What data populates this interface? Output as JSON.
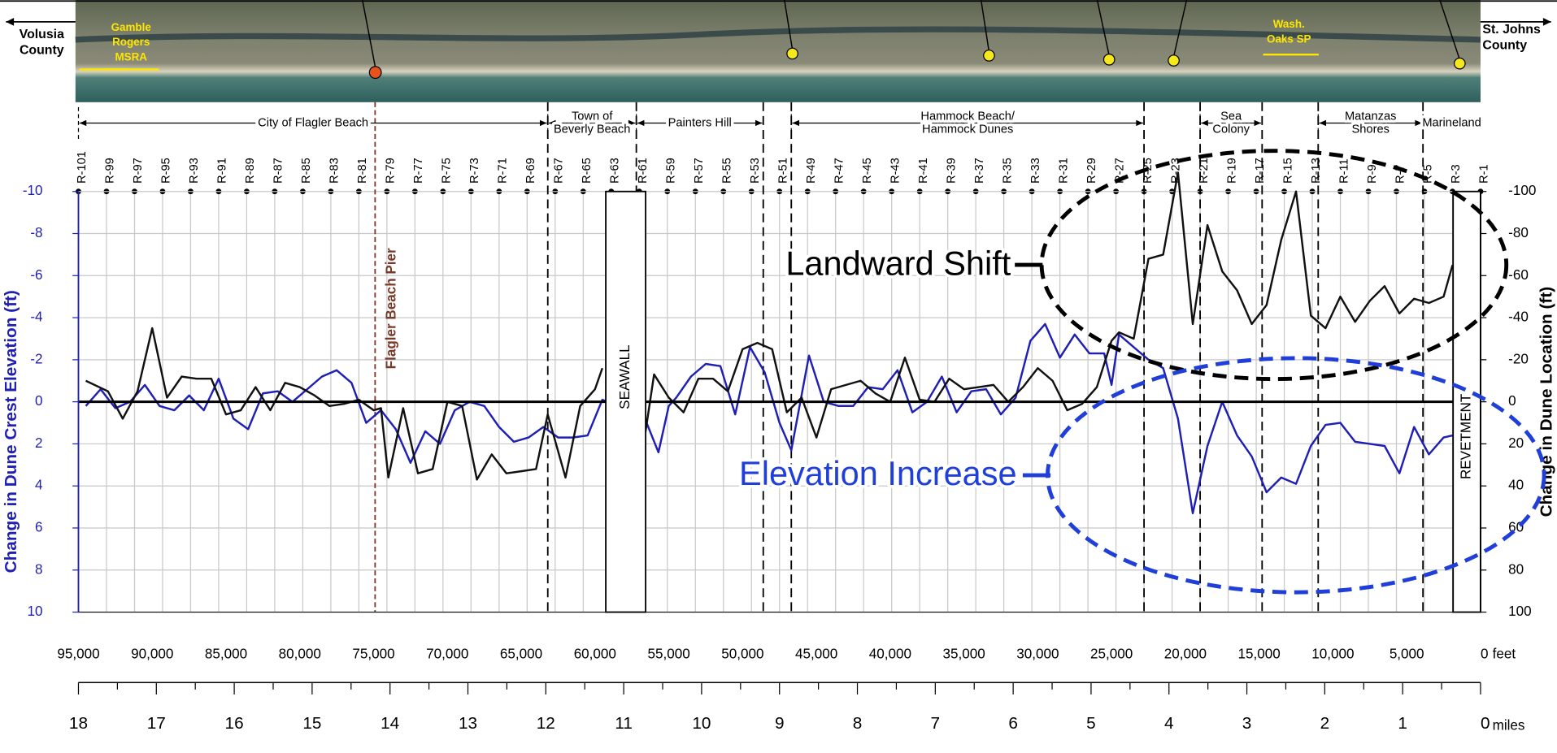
{
  "chart_data": {
    "type": "line",
    "xlim": [
      95000,
      0
    ],
    "xticks": [
      {
        "value": 95000,
        "label": "95,000"
      },
      {
        "value": 90000,
        "label": "90,000"
      },
      {
        "value": 85000,
        "label": "85,000"
      },
      {
        "value": 80000,
        "label": "80,000"
      },
      {
        "value": 75000,
        "label": "75,000"
      },
      {
        "value": 70000,
        "label": "70,000"
      },
      {
        "value": 65000,
        "label": "65,000"
      },
      {
        "value": 60000,
        "label": "60,000"
      },
      {
        "value": 55000,
        "label": "55,000"
      },
      {
        "value": 50000,
        "label": "50,000"
      },
      {
        "value": 45000,
        "label": "45,000"
      },
      {
        "value": 40000,
        "label": "40,000"
      },
      {
        "value": 35000,
        "label": "35,000"
      },
      {
        "value": 30000,
        "label": "30,000"
      },
      {
        "value": 25000,
        "label": "25,000"
      },
      {
        "value": 20000,
        "label": "20,000"
      },
      {
        "value": 15000,
        "label": "15,000"
      },
      {
        "value": 10000,
        "label": "10,000"
      },
      {
        "value": 5000,
        "label": "5,000"
      },
      0
    ],
    "x_unit": "feet",
    "x2lim": [
      18,
      0
    ],
    "x2ticks": [
      18,
      17,
      16,
      15,
      14,
      13,
      12,
      11,
      10,
      9,
      8,
      7,
      6,
      5,
      4,
      3,
      2,
      1,
      0
    ],
    "x2_unit": "miles",
    "ylabel": "Change in Dune Crest Elevation (ft)",
    "ylim": [
      -10,
      10
    ],
    "yticks": [
      -10,
      -8,
      -6,
      -4,
      -2,
      0,
      2,
      4,
      6,
      8,
      10
    ],
    "y_inverted": true,
    "y2label": "Change in Dune Location (ft)",
    "y2lim": [
      -100,
      100
    ],
    "y2ticks": [
      -100,
      -80,
      -60,
      -40,
      -20,
      0,
      20,
      40,
      60,
      80,
      100
    ],
    "grid": true,
    "series": [
      {
        "color": "#1f1fb4",
        "x": [
          94500,
          93500,
          92500,
          91500,
          90500,
          89500,
          88500,
          87500,
          86500,
          85500,
          84500,
          83500,
          82500,
          81500,
          80500,
          79500,
          78500,
          77500,
          76500,
          75500,
          74500,
          73500,
          72500,
          71500,
          70500,
          69500,
          68500,
          67500,
          66500,
          65500,
          64500,
          63500,
          62500,
          61500,
          60500,
          59500,
          58500,
          57800,
          57000,
          56500,
          55700,
          55000,
          54500,
          53500,
          52500,
          51500,
          50500,
          49500,
          48500,
          47500,
          46700,
          45500,
          44500,
          43500,
          42500,
          41500,
          40500,
          39500,
          38500,
          37500,
          36500,
          35500,
          34500,
          33500,
          32500,
          31500,
          30500,
          29500,
          28500,
          27500,
          26500,
          25500,
          25000,
          24500,
          23500,
          22500,
          21500,
          20500,
          19500,
          18500,
          17500,
          16500,
          15500,
          14500,
          13500,
          12500,
          11500,
          10500,
          9500,
          8500,
          7500,
          6500,
          5500,
          4500,
          3500,
          2500,
          1900
        ],
        "values": [
          0.2,
          -0.6,
          0.3,
          0,
          -0.8,
          0.2,
          0.4,
          -0.3,
          0.4,
          -1.1,
          0.8,
          1.3,
          -0.4,
          -0.5,
          0,
          -0.6,
          -1.2,
          -1.5,
          -0.9,
          1,
          0.4,
          1.3,
          2.9,
          1.4,
          2.0,
          0.4,
          0,
          0.2,
          1.2,
          1.9,
          1.7,
          1.2,
          1.7,
          1.7,
          1.6,
          -0.1,
          0.2,
          0.9,
          null,
          1.0,
          2.4,
          0.2,
          -0.2,
          -1.2,
          -1.8,
          -1.7,
          0.6,
          -2.6,
          -1.4,
          1.0,
          2.3,
          -2.2,
          0,
          0.2,
          0.2,
          -0.7,
          -0.6,
          -1.5,
          0.5,
          0,
          -1.2,
          0.5,
          -0.5,
          -0.6,
          0.6,
          -0.2,
          -2.9,
          -3.7,
          -2.1,
          -3.2,
          -2.3,
          -2.3,
          -0.8,
          -3.2,
          -2.6,
          -2.0,
          -1.6,
          0.8,
          5.3,
          2.1,
          0,
          1.6,
          2.6,
          4.3,
          3.6,
          3.9,
          2.1,
          1.1,
          1.0,
          1.9,
          2.0,
          2.1,
          3.4,
          1.2,
          2.5,
          1.7,
          1.6
        ]
      },
      {
        "color": "#111111",
        "axis": "y2",
        "x": [
          94500,
          93000,
          92000,
          91000,
          90000,
          89000,
          88000,
          87000,
          86000,
          85000,
          84000,
          83000,
          82000,
          81000,
          80000,
          79000,
          78000,
          77000,
          76000,
          75000,
          74500,
          74000,
          73000,
          72000,
          71000,
          70000,
          69000,
          68000,
          67000,
          66000,
          65000,
          64000,
          63200,
          62000,
          61000,
          60000,
          59500,
          58500,
          57000,
          56000,
          55000,
          54000,
          53000,
          52000,
          51000,
          50000,
          49000,
          48000,
          47000,
          46000,
          45000,
          44000,
          43000,
          42000,
          41000,
          40000,
          39000,
          38000,
          37000,
          36000,
          35000,
          34000,
          33000,
          32000,
          31000,
          30000,
          29000,
          28000,
          27000,
          26000,
          25000,
          24500,
          23500,
          22500,
          21500,
          20500,
          19500,
          18500,
          17500,
          16500,
          15500,
          14500,
          13500,
          12500,
          11500,
          10500,
          9500,
          8500,
          7500,
          6500,
          5500,
          4500,
          3500,
          2500,
          1900
        ],
        "values": [
          -10,
          -5,
          8,
          -5,
          -35,
          -2,
          -12,
          -11,
          -11,
          6,
          4,
          -7,
          4,
          -9,
          -7,
          -3,
          2,
          1,
          -1,
          4,
          3,
          36,
          3,
          34,
          32,
          0,
          2,
          37,
          25,
          34,
          33,
          32,
          6,
          36,
          2,
          -6,
          -16,
          null,
          34,
          -13,
          -2,
          5,
          -11,
          -11,
          -5,
          -25,
          -28,
          -25,
          5,
          -2,
          17,
          -6,
          -8,
          -10,
          -4,
          0,
          -21,
          -1,
          0,
          -11,
          -6,
          -7,
          -8,
          0,
          -7,
          -16,
          -10,
          4,
          1,
          -7,
          -29,
          -33,
          -30,
          -68,
          -70,
          -109,
          -37,
          -84,
          -62,
          -53,
          -37,
          -46,
          -77,
          -100,
          -41,
          -35,
          -50,
          -38,
          -48,
          -55,
          -42,
          -49,
          -47,
          -50,
          -65
        ]
      }
    ],
    "monuments": [
      "R-101",
      "R-99",
      "R-97",
      "R-95",
      "R-93",
      "R-91",
      "R-89",
      "R-87",
      "R-85",
      "R-83",
      "R-81",
      "R-79",
      "R-77",
      "R-75",
      "R-73",
      "R-71",
      "R-69",
      "R-67",
      "R-65",
      "R-63",
      "R-61",
      "R-59",
      "R-57",
      "R-55",
      "R-53",
      "R-51",
      "R-49",
      "R-47",
      "R-45",
      "R-43",
      "R-41",
      "R-39",
      "R-37",
      "R-35",
      "R-33",
      "R-31",
      "R-29",
      "R-27",
      "R-25",
      "R-23",
      "R-21",
      "R-19",
      "R-17",
      "R-15",
      "R-13",
      "R-11",
      "R-9",
      "R-7",
      "R-5",
      "R-3",
      "R-1"
    ],
    "monument_x": [
      95000,
      93100,
      91200,
      89300,
      87400,
      85500,
      83600,
      81700,
      79800,
      77900,
      76000,
      74100,
      72200,
      70300,
      68400,
      66500,
      64600,
      62700,
      60800,
      58900,
      57000,
      55100,
      53200,
      51300,
      49400,
      47500,
      45600,
      43700,
      41800,
      39900,
      38000,
      36100,
      34200,
      32300,
      30400,
      28500,
      26600,
      24700,
      22800,
      20900,
      19000,
      17100,
      15200,
      13300,
      11400,
      9500,
      7600,
      5700,
      3800,
      1900,
      0
    ],
    "boundaries": [
      63200,
      57200,
      48600,
      46700,
      22800,
      19000,
      14800,
      11000,
      3900
    ],
    "regions": [
      {
        "lines": [
          "City of Flagler Beach"
        ],
        "start": 95000,
        "end": 63200
      },
      {
        "lines": [
          "Town of",
          "Beverly Beach"
        ],
        "start": 63200,
        "end": 57200
      },
      {
        "lines": [
          "Painters Hill"
        ],
        "start": 57200,
        "end": 48600
      },
      {
        "lines": [
          "Hammock Beach/",
          "Hammock Dunes"
        ],
        "start": 46700,
        "end": 22800
      },
      {
        "lines": [
          "Sea",
          "Colony"
        ],
        "start": 19000,
        "end": 14800
      },
      {
        "lines": [
          "Matanzas",
          "Shores"
        ],
        "start": 11000,
        "end": 3900
      },
      {
        "lines": [
          "Marineland"
        ],
        "start": 3900,
        "end": 0
      }
    ],
    "pier": {
      "label": "Flagler Beach Pier",
      "x": 74900
    },
    "structures": [
      {
        "label": "SEAWALL",
        "start": 59270,
        "end": 56570
      },
      {
        "label": "REVETMENT",
        "start": 1860,
        "end": 0
      }
    ],
    "annotations": [
      "Landward Shift",
      "Elevation Increase"
    ],
    "map_labels": {
      "left_county": [
        "Volusia",
        "County"
      ],
      "right_county": [
        "St. Johns",
        "County"
      ],
      "park_1": [
        "Gamble",
        "Rogers",
        "MSRA"
      ],
      "park_2": [
        "Wash.",
        "Oaks SP"
      ]
    }
  }
}
